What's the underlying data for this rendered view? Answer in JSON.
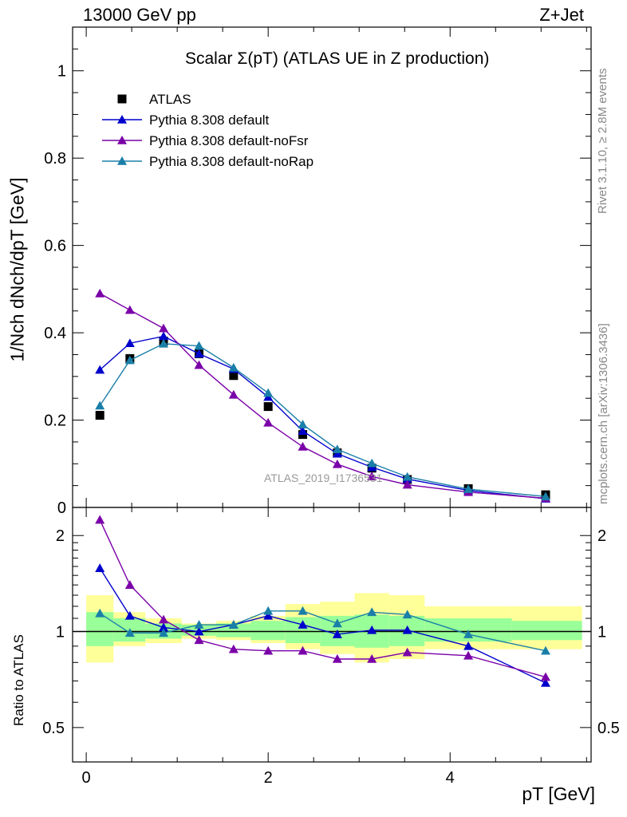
{
  "header": {
    "left": "13000 GeV pp",
    "right": "Z+Jet"
  },
  "title": "Scalar Σ(pT) (ATLAS UE in Z production)",
  "y_axis_label": "1/Nch dNch/dpT [GeV]",
  "ratio_y_axis_label": "Ratio to ATLAS",
  "x_axis_label": "pT [GeV]",
  "side_text": {
    "rivet": "Rivet 3.1.10, ≥ 2.8M events",
    "mcplots": "mcplots.cern.ch [arXiv:1306.3436]"
  },
  "watermark": "ATLAS_2019_I1736531",
  "colors": {
    "data": "#000000",
    "default": "#0000cc",
    "noFsr": "#7a00a8",
    "noRap": "#1a7fa8",
    "band_inner": "#99ff99",
    "band_outer": "#ffff99"
  },
  "chart_data": [
    {
      "type": "line",
      "panel": "main",
      "xlim": [
        -0.15,
        5.55
      ],
      "ylim": [
        0,
        1.1
      ],
      "yticks": [
        0,
        0.2,
        0.4,
        0.6,
        0.8,
        1
      ],
      "ytick_labels": [
        "0",
        "0.2",
        "0.4",
        "0.6",
        "0.8",
        "1"
      ],
      "xticks": [
        0,
        2,
        4
      ],
      "xtick_labels": [
        "0",
        "2",
        "4"
      ],
      "legend_placement": "top-left",
      "x": [
        0.15,
        0.48,
        0.85,
        1.24,
        1.62,
        2.0,
        2.38,
        2.76,
        3.14,
        3.53,
        4.2,
        5.05
      ],
      "series": [
        {
          "name": "ATLAS",
          "key": "data",
          "values": [
            0.211,
            0.341,
            0.381,
            0.352,
            0.302,
            0.231,
            0.167,
            0.125,
            0.09,
            0.064,
            0.043,
            0.029
          ]
        },
        {
          "name": "Pythia 8.308 default",
          "key": "default",
          "values": [
            0.315,
            0.376,
            0.392,
            0.352,
            0.317,
            0.253,
            0.175,
            0.123,
            0.092,
            0.065,
            0.039,
            0.02
          ]
        },
        {
          "name": "Pythia 8.308 default-noFsr",
          "key": "noFsr",
          "values": [
            0.49,
            0.452,
            0.41,
            0.326,
            0.258,
            0.194,
            0.139,
            0.099,
            0.071,
            0.052,
            0.035,
            0.021
          ]
        },
        {
          "name": "Pythia 8.308 default-noRap",
          "key": "noRap",
          "values": [
            0.233,
            0.337,
            0.375,
            0.37,
            0.32,
            0.262,
            0.19,
            0.133,
            0.101,
            0.07,
            0.042,
            0.025
          ]
        }
      ]
    },
    {
      "type": "line",
      "panel": "ratio",
      "xlim": [
        -0.15,
        5.55
      ],
      "ylim": [
        0.39,
        2.45
      ],
      "log_y": true,
      "yticks": [
        0.5,
        1,
        2
      ],
      "ytick_labels": [
        "0.5",
        "1",
        "2"
      ],
      "x": [
        0.15,
        0.48,
        0.85,
        1.24,
        1.62,
        2.0,
        2.38,
        2.76,
        3.14,
        3.53,
        4.2,
        5.05
      ],
      "bin_edges": [
        0.0,
        0.3,
        0.65,
        1.05,
        1.43,
        1.81,
        2.19,
        2.57,
        2.95,
        3.33,
        3.72,
        4.68,
        5.45
      ],
      "band_inner": [
        [
          0.9,
          1.15
        ],
        [
          0.93,
          1.1
        ],
        [
          0.95,
          1.06
        ],
        [
          0.97,
          1.05
        ],
        [
          0.96,
          1.06
        ],
        [
          0.94,
          1.08
        ],
        [
          0.92,
          1.11
        ],
        [
          0.9,
          1.12
        ],
        [
          0.89,
          1.13
        ],
        [
          0.9,
          1.12
        ],
        [
          0.93,
          1.1
        ],
        [
          0.94,
          1.08
        ]
      ],
      "band_outer": [
        [
          0.8,
          1.3
        ],
        [
          0.9,
          1.15
        ],
        [
          0.92,
          1.1
        ],
        [
          0.95,
          1.06
        ],
        [
          0.94,
          1.08
        ],
        [
          0.92,
          1.12
        ],
        [
          0.88,
          1.22
        ],
        [
          0.85,
          1.24
        ],
        [
          0.8,
          1.32
        ],
        [
          0.82,
          1.3
        ],
        [
          0.88,
          1.2
        ],
        [
          0.88,
          1.2
        ]
      ],
      "series": [
        {
          "name": "Pythia 8.308 default",
          "key": "default",
          "values": [
            1.58,
            1.12,
            1.03,
            1.0,
            1.05,
            1.12,
            1.05,
            0.98,
            1.01,
            1.01,
            0.9,
            0.69
          ]
        },
        {
          "name": "Pythia 8.308 default-noFsr",
          "key": "noFsr",
          "values": [
            2.24,
            1.4,
            1.09,
            0.94,
            0.88,
            0.87,
            0.87,
            0.82,
            0.82,
            0.86,
            0.84,
            0.72
          ]
        },
        {
          "name": "Pythia 8.308 default-noRap",
          "key": "noRap",
          "values": [
            1.14,
            0.99,
            0.99,
            1.05,
            1.05,
            1.16,
            1.16,
            1.06,
            1.15,
            1.13,
            0.98,
            0.87
          ]
        }
      ]
    }
  ]
}
